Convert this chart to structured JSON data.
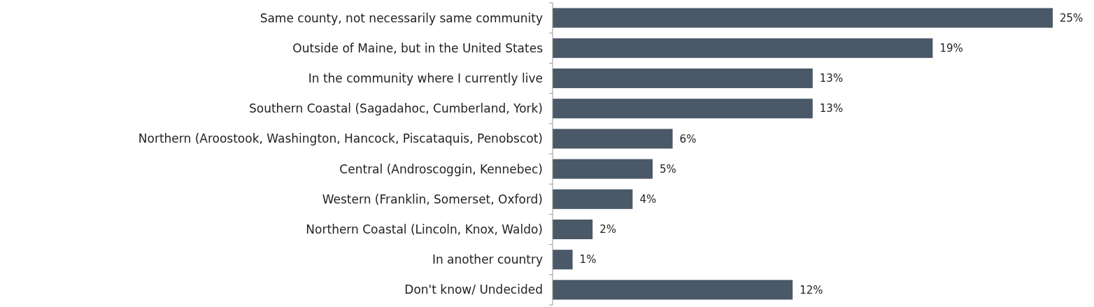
{
  "chart_data": {
    "type": "bar",
    "orientation": "horizontal",
    "categories": [
      "Same county, not necessarily same community",
      "Outside of Maine, but in the United States",
      "In the community where I currently live",
      "Southern Coastal (Sagadahoc, Cumberland, York)",
      "Northern (Aroostook, Washington, Hancock, Piscataquis, Penobscot)",
      "Central (Androscoggin, Kennebec)",
      "Western (Franklin, Somerset, Oxford)",
      "Northern Coastal (Lincoln, Knox, Waldo)",
      "In another country",
      "Don't know/ Undecided"
    ],
    "values": [
      25,
      19,
      13,
      13,
      6,
      5,
      4,
      2,
      1,
      12
    ],
    "value_labels": [
      "25%",
      "19%",
      "13%",
      "13%",
      "6%",
      "5%",
      "4%",
      "2%",
      "1%",
      "12%"
    ],
    "color": "#4a5868"
  }
}
